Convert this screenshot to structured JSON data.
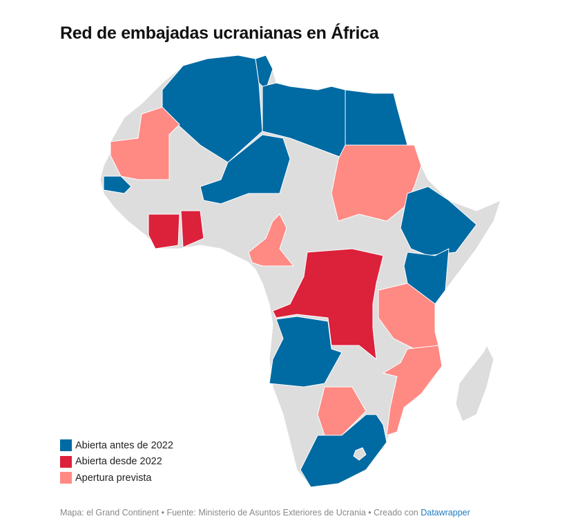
{
  "title": "Red de embajadas ucranianas en África",
  "legend": [
    {
      "label": "Abierta antes de 2022",
      "color": "#006aa3"
    },
    {
      "label": "Abierta desde 2022",
      "color": "#dc213b"
    },
    {
      "label": "Apertura prevista",
      "color": "#ff8a84"
    }
  ],
  "base_color": "#dddddd",
  "footer": {
    "text": "Mapa: el Grand Continent • Fuente: Ministerio de Asuntos Exteriores de Ucrania • Creado con ",
    "link": "Datawrapper"
  }
}
